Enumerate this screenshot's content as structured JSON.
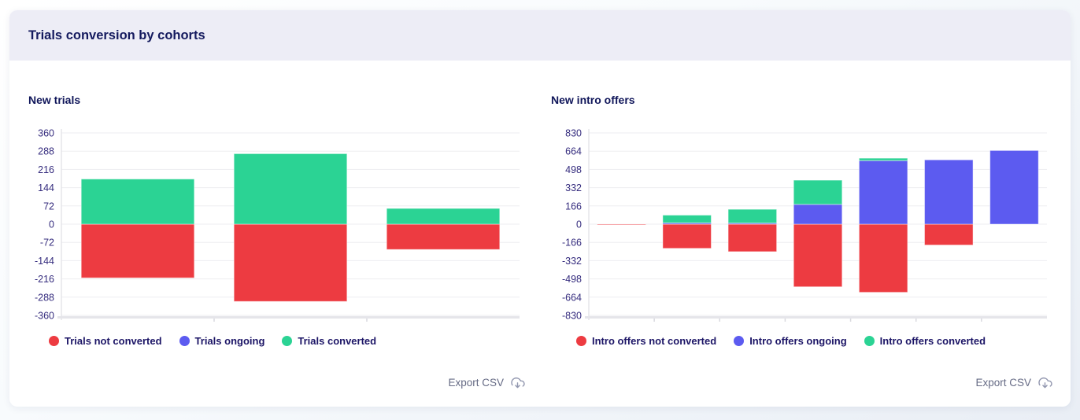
{
  "page": {
    "card_title": "Trials conversion by cohorts"
  },
  "export": {
    "label": "Export CSV"
  },
  "colors": {
    "not_converted": "#ED3B41",
    "ongoing": "#5C5BF0",
    "converted": "#2BD394",
    "header_bg": "#EDEDF6",
    "card_bg": "#FFFFFF",
    "title_text": "#141A5E",
    "tick_text": "#352C7E",
    "legend_text": "#1C1566",
    "export_text": "#666B85",
    "grid": "#EDEDF1",
    "axis": "#E5E5EA"
  },
  "chart_data": [
    {
      "id": "new_trials",
      "type": "bar",
      "stacked": true,
      "title": "New trials",
      "categories": [
        "",
        "",
        ""
      ],
      "series": [
        {
          "name": "Trials not converted",
          "color": "#ED3B41",
          "values": [
            -212,
            -305,
            -100
          ]
        },
        {
          "name": "Trials ongoing",
          "color": "#5C5BF0",
          "values": [
            0,
            0,
            0
          ]
        },
        {
          "name": "Trials converted",
          "color": "#2BD394",
          "values": [
            178,
            278,
            62
          ]
        }
      ],
      "ylim": [
        -360,
        360
      ],
      "yticks": [
        360,
        288,
        216,
        144,
        72,
        0,
        -72,
        -144,
        -216,
        -288,
        -360
      ],
      "grid": true,
      "legend_position": "bottom"
    },
    {
      "id": "new_intro_offers",
      "type": "bar",
      "stacked": true,
      "title": "New intro offers",
      "categories": [
        "",
        "",
        "",
        "",
        "",
        "",
        ""
      ],
      "series": [
        {
          "name": "Intro offers not converted",
          "color": "#ED3B41",
          "values": [
            -4,
            -220,
            -250,
            -570,
            -620,
            -190,
            0
          ]
        },
        {
          "name": "Intro offers ongoing",
          "color": "#5C5BF0",
          "values": [
            0,
            12,
            10,
            180,
            578,
            585,
            670
          ]
        },
        {
          "name": "Intro offers converted",
          "color": "#2BD394",
          "values": [
            0,
            70,
            125,
            220,
            22,
            0,
            0
          ]
        }
      ],
      "ylim": [
        -830,
        830
      ],
      "yticks": [
        830,
        664,
        498,
        332,
        166,
        0,
        -166,
        -332,
        -498,
        -664,
        -830
      ],
      "grid": true,
      "legend_position": "bottom"
    }
  ]
}
